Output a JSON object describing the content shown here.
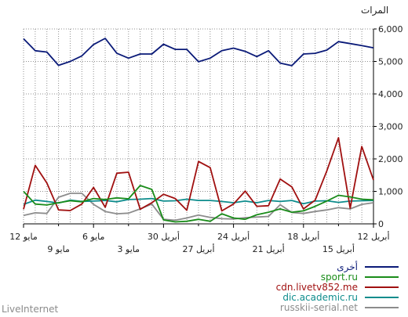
{
  "chart_data": {
    "type": "line",
    "ylabel": "المرات",
    "ylim": [
      0,
      6000
    ],
    "y_ticks": [
      "0",
      "1,000",
      "2,000",
      "3,000",
      "4,000",
      "5,000",
      "6,000"
    ],
    "y_tick_values": [
      0,
      1000,
      2000,
      3000,
      4000,
      5000,
      6000
    ],
    "grid": true,
    "x_ticks_top": [
      "12 مايو",
      "6 مايو",
      "30 أبريل",
      "24 أبريل",
      "18 أبريل",
      "12 أبريل"
    ],
    "x_ticks_bottom": [
      "9 مايو",
      "3 مايو",
      "27 أبريل",
      "21 أبريل",
      "15 أبريل"
    ],
    "x_order": "newest-left",
    "points_count": 31,
    "series": [
      {
        "name": "أخرى",
        "color": "#0a1a78",
        "values": [
          5700,
          5330,
          5290,
          4880,
          5000,
          5170,
          5520,
          5710,
          5250,
          5100,
          5230,
          5230,
          5530,
          5370,
          5370,
          4990,
          5100,
          5330,
          5410,
          5310,
          5150,
          5330,
          4950,
          4870,
          5230,
          5250,
          5350,
          5610,
          5550,
          5490,
          5420
        ]
      },
      {
        "name": "sport.ru",
        "color": "#1a8c1a",
        "values": [
          1000,
          610,
          580,
          650,
          710,
          680,
          780,
          750,
          800,
          770,
          1180,
          1060,
          120,
          60,
          80,
          140,
          80,
          310,
          180,
          140,
          280,
          360,
          460,
          360,
          400,
          540,
          700,
          880,
          830,
          760,
          740
        ]
      },
      {
        "name": "cdn.livetv852.me",
        "color": "#a01010",
        "values": [
          450,
          1800,
          1260,
          430,
          410,
          610,
          1120,
          510,
          1560,
          1590,
          450,
          650,
          910,
          780,
          420,
          1920,
          1730,
          400,
          610,
          1010,
          540,
          560,
          1380,
          1140,
          460,
          730,
          1630,
          2650,
          480,
          2380,
          1350
        ]
      },
      {
        "name": "dic.academic.ru",
        "color": "#0d8c8c",
        "values": [
          600,
          730,
          690,
          640,
          730,
          690,
          700,
          720,
          680,
          750,
          760,
          780,
          700,
          710,
          760,
          720,
          720,
          690,
          650,
          700,
          650,
          720,
          690,
          720,
          620,
          700,
          710,
          660,
          700,
          710,
          720
        ]
      },
      {
        "name": "russkii-serial.net",
        "color": "#8c8c8c",
        "values": [
          260,
          340,
          320,
          820,
          940,
          940,
          600,
          380,
          310,
          330,
          460,
          610,
          140,
          110,
          180,
          270,
          200,
          160,
          150,
          190,
          210,
          230,
          590,
          350,
          320,
          380,
          430,
          500,
          460,
          600,
          650
        ]
      }
    ]
  },
  "brand": "LiveInternet"
}
